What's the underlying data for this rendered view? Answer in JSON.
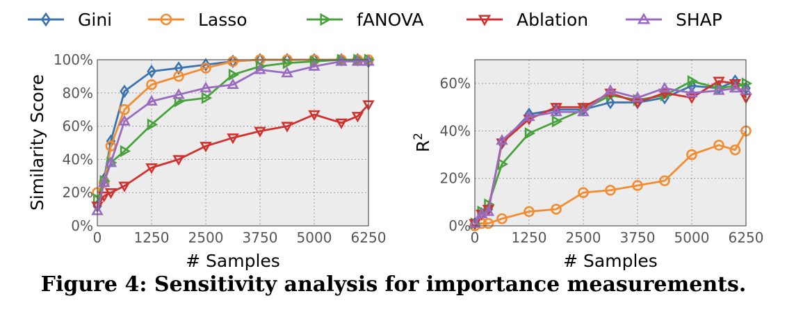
{
  "caption": "Figure 4: Sensitivity analysis for importance measurements.",
  "legend": {
    "placement": "top",
    "entries": [
      {
        "name": "Gini",
        "color": "#3a73ae",
        "marker": "diamond"
      },
      {
        "name": "Lasso",
        "color": "#f28c2f",
        "marker": "circle"
      },
      {
        "name": "fANOVA",
        "color": "#48a23c",
        "marker": "triangle-right"
      },
      {
        "name": "Ablation",
        "color": "#d1312e",
        "marker": "triangle-down"
      },
      {
        "name": "SHAP",
        "color": "#9a6ac1",
        "marker": "triangle-up"
      }
    ]
  },
  "chart_data": [
    {
      "type": "line",
      "xlabel": "# Samples",
      "ylabel": "Similarity Score",
      "xlim": [
        0,
        6250
      ],
      "ylim": [
        0,
        100
      ],
      "xticks": [
        0,
        1250,
        2500,
        3750,
        5000,
        6250
      ],
      "xtick_labels": [
        "0",
        "1250",
        "2500",
        "3750",
        "5000",
        "6250"
      ],
      "yticks": [
        0,
        20,
        40,
        60,
        80,
        100
      ],
      "ytick_labels": [
        "0%",
        "20%",
        "40%",
        "60%",
        "80%",
        "100%"
      ],
      "grid": true,
      "series": [
        {
          "name": "Gini",
          "x": [
            0,
            156,
            312,
            625,
            1250,
            1875,
            2500,
            3125,
            3750,
            4375,
            5000,
            5625,
            6000,
            6250
          ],
          "y": [
            12,
            28,
            51,
            81,
            93,
            95,
            97,
            99,
            100,
            100,
            100,
            100,
            100,
            99
          ]
        },
        {
          "name": "Lasso",
          "x": [
            0,
            156,
            312,
            625,
            1250,
            1875,
            2500,
            3125,
            3750,
            4375,
            5000,
            5625,
            6000,
            6250
          ],
          "y": [
            20,
            26,
            48,
            70,
            85,
            90,
            95,
            99,
            100,
            100,
            100,
            100,
            100,
            100
          ]
        },
        {
          "name": "fANOVA",
          "x": [
            0,
            156,
            312,
            625,
            1250,
            1875,
            2500,
            3125,
            3750,
            4375,
            5000,
            5625,
            6000,
            6250
          ],
          "y": [
            16,
            27,
            38,
            45,
            61,
            75,
            77,
            91,
            96,
            98,
            99,
            100,
            100,
            100
          ]
        },
        {
          "name": "Ablation",
          "x": [
            0,
            156,
            312,
            625,
            1250,
            1875,
            2500,
            3125,
            3750,
            4375,
            5000,
            5625,
            6000,
            6250
          ],
          "y": [
            12,
            18,
            20,
            24,
            35,
            40,
            48,
            53,
            57,
            60,
            67,
            62,
            66,
            73
          ]
        },
        {
          "name": "SHAP",
          "x": [
            0,
            156,
            312,
            625,
            1250,
            1875,
            2500,
            3125,
            3750,
            4375,
            5000,
            5625,
            6000,
            6250
          ],
          "y": [
            9,
            26,
            38,
            63,
            75,
            79,
            83,
            85,
            94,
            92,
            96,
            99,
            99,
            99
          ]
        }
      ]
    },
    {
      "type": "line",
      "xlabel": "# Samples",
      "ylabel": "R²",
      "xlim": [
        0,
        6250
      ],
      "ylim": [
        0,
        70
      ],
      "xticks": [
        0,
        1250,
        2500,
        3750,
        5000,
        6250
      ],
      "xtick_labels": [
        "0",
        "1250",
        "2500",
        "3750",
        "5000",
        "6250"
      ],
      "yticks": [
        0,
        20,
        40,
        60
      ],
      "ytick_labels": [
        "0%",
        "20%",
        "40%",
        "60%"
      ],
      "grid": true,
      "series": [
        {
          "name": "Gini",
          "x": [
            0,
            156,
            312,
            625,
            1250,
            1875,
            2500,
            3125,
            3750,
            4375,
            5000,
            5625,
            6000,
            6250
          ],
          "y": [
            1,
            5,
            7,
            35,
            47,
            49,
            49,
            52,
            52,
            54,
            59,
            58,
            61,
            58
          ]
        },
        {
          "name": "Lasso",
          "x": [
            0,
            156,
            312,
            625,
            1250,
            1875,
            2500,
            3125,
            3750,
            4375,
            5000,
            5625,
            6000,
            6250
          ],
          "y": [
            0,
            1,
            1,
            3,
            6,
            7,
            14,
            15,
            17,
            19,
            30,
            34,
            32,
            40
          ]
        },
        {
          "name": "fANOVA",
          "x": [
            0,
            156,
            312,
            625,
            1250,
            1875,
            2500,
            3125,
            3750,
            4375,
            5000,
            5625,
            6000,
            6250
          ],
          "y": [
            1,
            6,
            9,
            26,
            39,
            44,
            49,
            55,
            53,
            55,
            61,
            58,
            59,
            60
          ]
        },
        {
          "name": "Ablation",
          "x": [
            0,
            156,
            312,
            625,
            1250,
            1875,
            2500,
            3125,
            3750,
            4375,
            5000,
            5625,
            6000,
            6250
          ],
          "y": [
            1,
            5,
            7,
            35,
            45,
            50,
            50,
            56,
            52,
            56,
            54,
            61,
            60,
            54
          ]
        },
        {
          "name": "SHAP",
          "x": [
            0,
            156,
            312,
            625,
            1250,
            1875,
            2500,
            3125,
            3750,
            4375,
            5000,
            5625,
            6000,
            6250
          ],
          "y": [
            1,
            5,
            6,
            36,
            46,
            48,
            48,
            57,
            54,
            58,
            56,
            57,
            58,
            57
          ]
        }
      ]
    }
  ]
}
